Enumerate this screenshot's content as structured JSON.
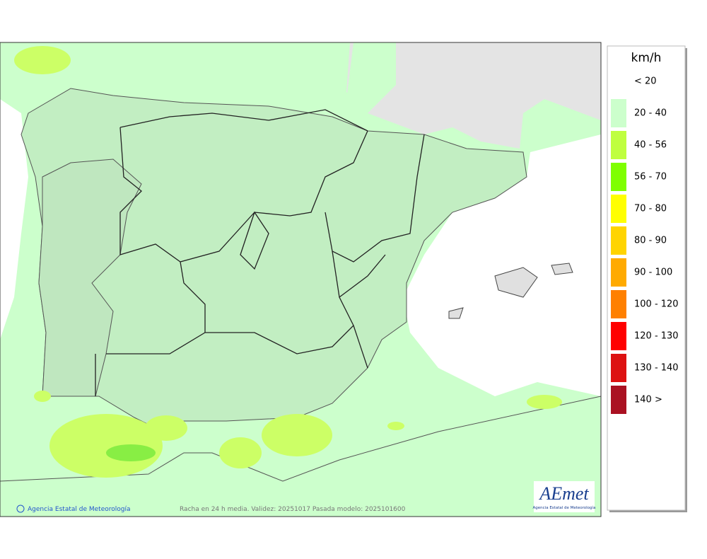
{
  "legend": {
    "title": "km/h",
    "items": [
      {
        "label": "< 20"
      },
      {
        "label": "20 - 40",
        "color": "#ccffcc"
      },
      {
        "label": "40 - 56",
        "color": "#bfff3f"
      },
      {
        "label": "56 - 70",
        "color": "#7fff00"
      },
      {
        "label": "70 - 80",
        "color": "#ffff00"
      },
      {
        "label": "80 - 90",
        "color": "#ffd400"
      },
      {
        "label": "90 - 100",
        "color": "#ffaa00"
      },
      {
        "label": "100 - 120",
        "color": "#ff8000"
      },
      {
        "label": "120 - 130",
        "color": "#ff0000"
      },
      {
        "label": "130 - 140",
        "color": "#dd1111"
      },
      {
        "label": "140 >",
        "color": "#aa1122"
      }
    ]
  },
  "footer": {
    "credit": "Agencia Estatal de Meteorología",
    "caption": "Racha en 24 h media. Validez: 20251017 Pasada modelo: 2025101600"
  },
  "logo": {
    "name": "AEmet",
    "subtitle": "Agencia Estatal de Meteorología"
  }
}
